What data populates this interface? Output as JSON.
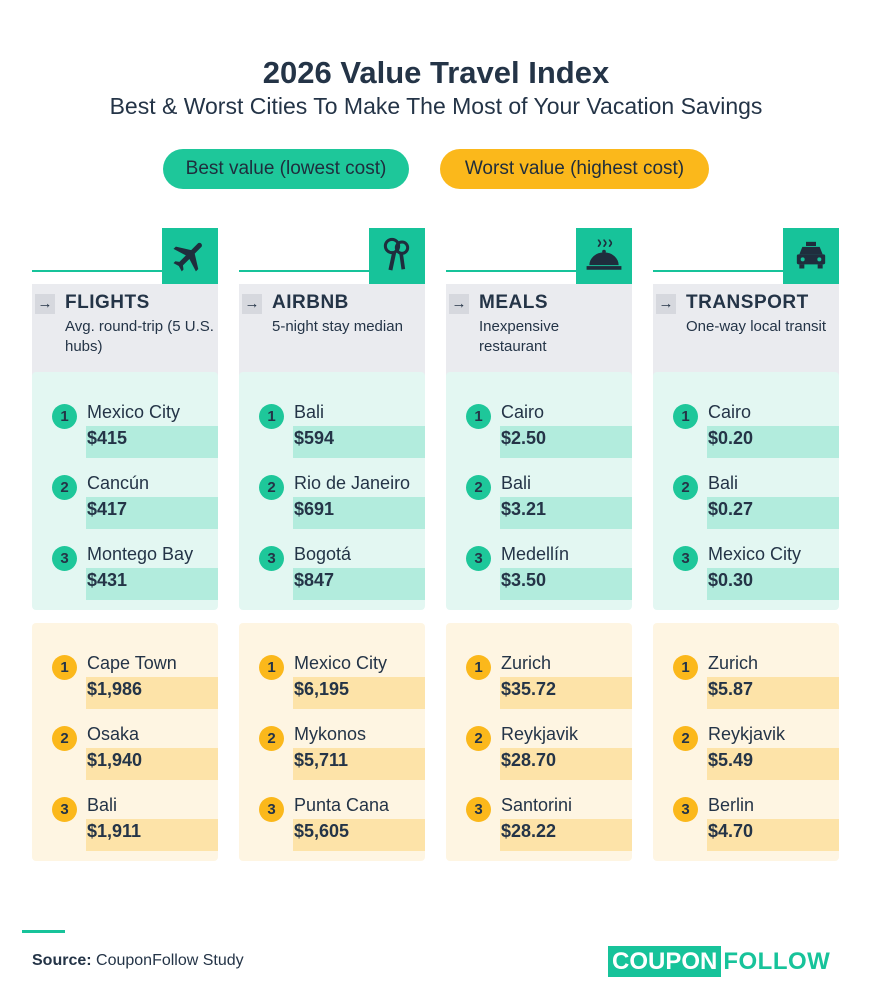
{
  "title": "2026 Value Travel Index",
  "subtitle": "Best & Worst Cities To Make The Most of Your Vacation Savings",
  "legend": {
    "best": "Best value (lowest cost)",
    "worst": "Worst value (highest cost)"
  },
  "colors": {
    "best": "#1ec79a",
    "worst": "#fbb81b",
    "best_panel": "#e3f7f2",
    "worst_panel": "#fef5e2",
    "text": "#243447"
  },
  "chart_data": {
    "type": "table",
    "categories": [
      {
        "name": "FLIGHTS",
        "description": "Avg. round-trip (5 U.S. hubs)",
        "icon": "airplane-icon",
        "best": [
          {
            "rank": "1",
            "city": "Mexico City",
            "value": "$415"
          },
          {
            "rank": "2",
            "city": "Cancún",
            "value": "$417"
          },
          {
            "rank": "3",
            "city": "Montego Bay",
            "value": "$431"
          }
        ],
        "worst": [
          {
            "rank": "1",
            "city": "Cape Town",
            "value": "$1,986"
          },
          {
            "rank": "2",
            "city": "Osaka",
            "value": "$1,940"
          },
          {
            "rank": "3",
            "city": "Bali",
            "value": "$1,911"
          }
        ]
      },
      {
        "name": "AIRBNB",
        "description": "5-night stay median",
        "icon": "keys-icon",
        "best": [
          {
            "rank": "1",
            "city": "Bali",
            "value": "$594"
          },
          {
            "rank": "2",
            "city": "Rio de Janeiro",
            "value": "$691"
          },
          {
            "rank": "3",
            "city": "Bogotá",
            "value": "$847"
          }
        ],
        "worst": [
          {
            "rank": "1",
            "city": "Mexico City",
            "value": "$6,195"
          },
          {
            "rank": "2",
            "city": "Mykonos",
            "value": "$5,711"
          },
          {
            "rank": "3",
            "city": "Punta Cana",
            "value": "$5,605"
          }
        ]
      },
      {
        "name": "MEALS",
        "description": "Inexpensive restaurant",
        "icon": "food-cloche-icon",
        "best": [
          {
            "rank": "1",
            "city": "Cairo",
            "value": "$2.50"
          },
          {
            "rank": "2",
            "city": "Bali",
            "value": "$3.21"
          },
          {
            "rank": "3",
            "city": "Medellín",
            "value": "$3.50"
          }
        ],
        "worst": [
          {
            "rank": "1",
            "city": "Zurich",
            "value": "$35.72"
          },
          {
            "rank": "2",
            "city": "Reykjavik",
            "value": "$28.70"
          },
          {
            "rank": "3",
            "city": "Santorini",
            "value": "$28.22"
          }
        ]
      },
      {
        "name": "TRANSPORT",
        "description": "One-way local transit",
        "icon": "taxi-icon",
        "best": [
          {
            "rank": "1",
            "city": "Cairo",
            "value": "$0.20"
          },
          {
            "rank": "2",
            "city": "Bali",
            "value": "$0.27"
          },
          {
            "rank": "3",
            "city": "Mexico City",
            "value": "$0.30"
          }
        ],
        "worst": [
          {
            "rank": "1",
            "city": "Zurich",
            "value": "$5.87"
          },
          {
            "rank": "2",
            "city": "Reykjavik",
            "value": "$5.49"
          },
          {
            "rank": "3",
            "city": "Berlin",
            "value": "$4.70"
          }
        ]
      }
    ]
  },
  "footer": {
    "source_label": "Source:",
    "source_text": "CouponFollow Study",
    "logo_part1": "COUPON",
    "logo_part2": "FOLLOW"
  }
}
